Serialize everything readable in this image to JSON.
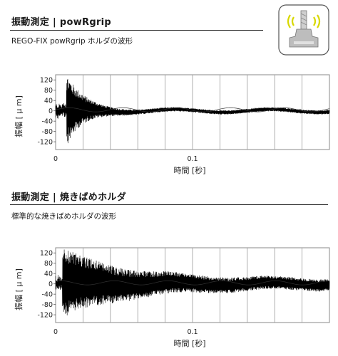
{
  "sections": [
    {
      "title": "振動測定 | powRgrip",
      "subtitle": "REGO-FIX powRgrip ホルダの波形"
    },
    {
      "title": "振動測定 | 焼きばめホルダ",
      "subtitle": "標準的な焼きばめホルダの波形"
    }
  ],
  "icon": {
    "name": "vibration-holder-icon",
    "accent": "#d8d800"
  },
  "chart_data": [
    {
      "type": "line",
      "xlabel": "時間 [秒]",
      "ylabel": "振幅 [ μ m]",
      "xlim": [
        0,
        0.2
      ],
      "ylim": [
        -150,
        140
      ],
      "yticks": [
        120,
        80,
        40,
        0,
        -40,
        -80,
        -120
      ],
      "yticklabels": [
        "120",
        "80",
        "40",
        "0",
        "-40",
        "-80",
        "-120"
      ],
      "xticks": [
        0,
        0.1
      ],
      "xticklabels": [
        "0",
        "0.1"
      ],
      "grid": true,
      "series_color": "#000000",
      "envelope": {
        "impact_time": 0.008,
        "peak_amplitude": 140,
        "decay_rate": 80,
        "steady_amplitude": 8
      }
    },
    {
      "type": "line",
      "xlabel": "時間 [秒]",
      "ylabel": "振幅 [ μ m]",
      "xlim": [
        0,
        0.2
      ],
      "ylim": [
        -150,
        140
      ],
      "yticks": [
        120,
        80,
        40,
        0,
        -40,
        -80,
        -120
      ],
      "yticklabels": [
        "120",
        "80",
        "40",
        "0",
        "-40",
        "-80",
        "-120"
      ],
      "xticks": [
        0,
        0.1
      ],
      "xticklabels": [
        "0",
        "0.1"
      ],
      "grid": true,
      "series_color": "#000000",
      "envelope": {
        "impact_time": 0.005,
        "peak_amplitude": 135,
        "decay_rate": 22,
        "steady_amplitude": 22
      }
    }
  ]
}
